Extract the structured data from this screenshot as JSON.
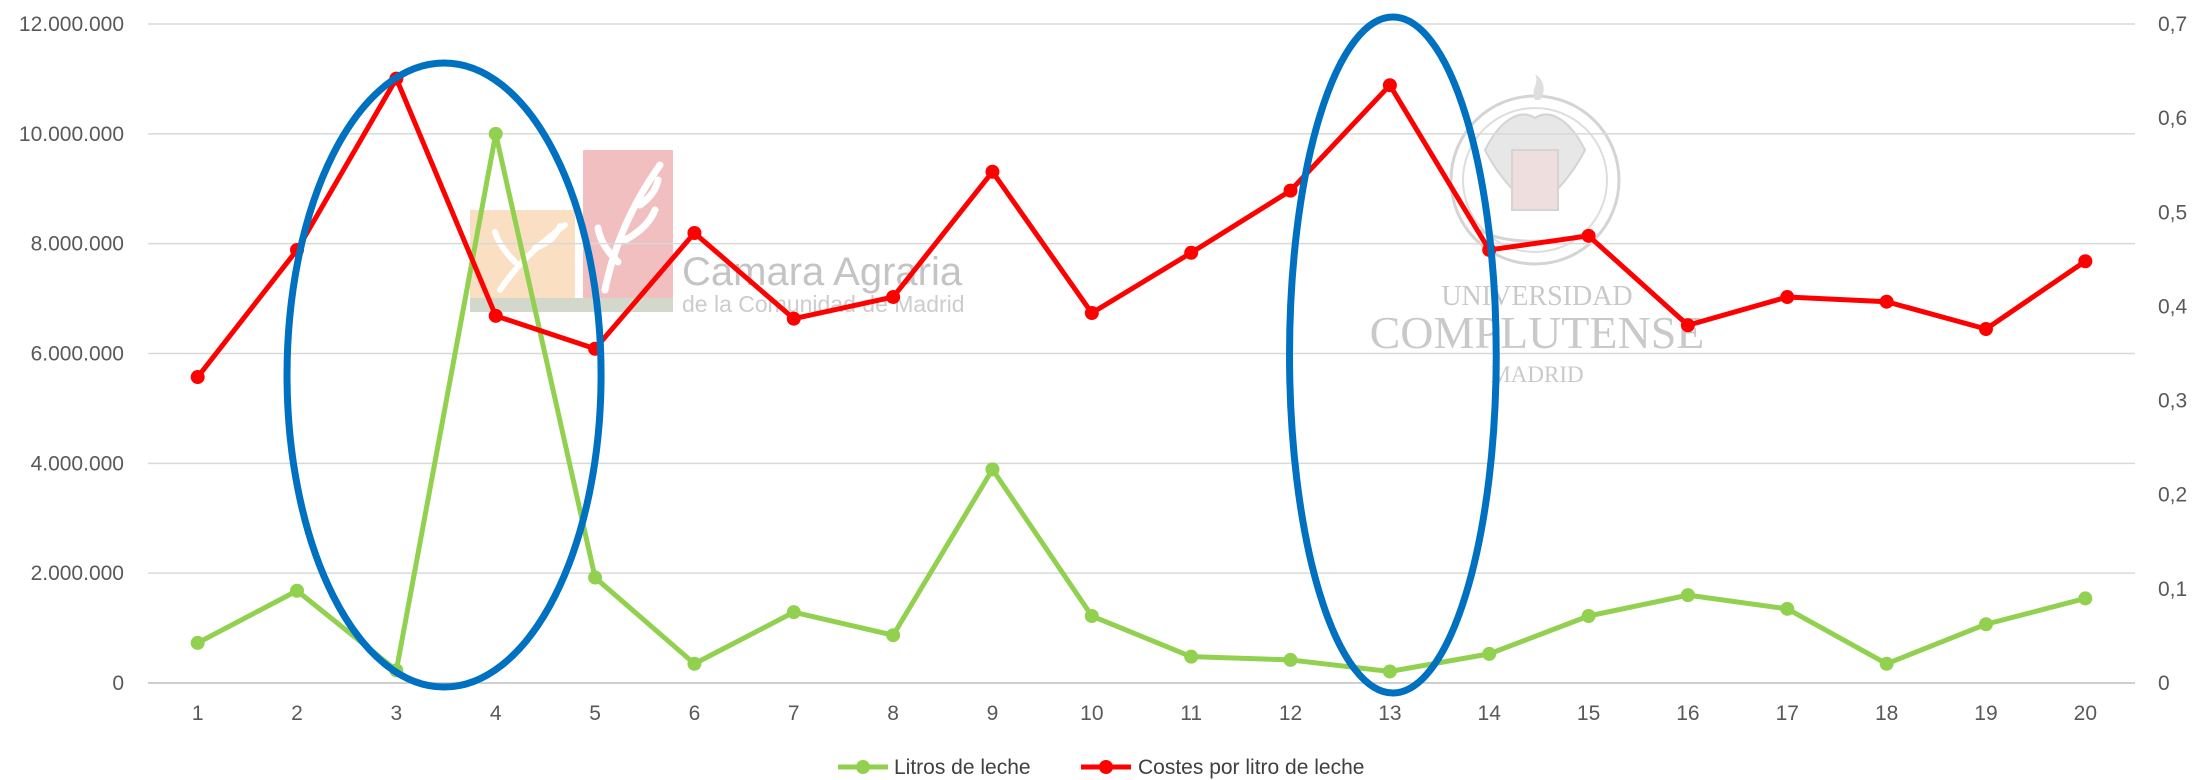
{
  "chart_data": {
    "type": "line",
    "title": "",
    "xlabel": "",
    "ylabel": "",
    "categories": [
      "1",
      "2",
      "3",
      "4",
      "5",
      "6",
      "7",
      "8",
      "9",
      "10",
      "11",
      "12",
      "13",
      "14",
      "15",
      "16",
      "17",
      "18",
      "19",
      "20"
    ],
    "left_axis": {
      "ylim": [
        0,
        12000000
      ],
      "ticks": [
        0,
        2000000,
        4000000,
        6000000,
        8000000,
        10000000,
        12000000
      ],
      "tick_labels": [
        "0",
        "2.000.000",
        "4.000.000",
        "6.000.000",
        "8.000.000",
        "10.000.000",
        "12.000.000"
      ]
    },
    "right_axis": {
      "ylim": [
        0,
        0.7
      ],
      "ticks": [
        0,
        0.1,
        0.2,
        0.3,
        0.4,
        0.5,
        0.6,
        0.7
      ],
      "tick_labels": [
        "0",
        "0,1",
        "0,2",
        "0,3",
        "0,4",
        "0,5",
        "0,6",
        "0,7"
      ]
    },
    "series": [
      {
        "name": "Litros de leche",
        "axis": "left",
        "color": "#92d050",
        "values": [
          730000,
          1680000,
          230000,
          10000000,
          1920000,
          350000,
          1290000,
          870000,
          3890000,
          1220000,
          480000,
          420000,
          210000,
          530000,
          1220000,
          1600000,
          1350000,
          350000,
          1070000,
          1540000
        ]
      },
      {
        "name": "Costes por litro de leche",
        "axis": "right",
        "color": "#ff0000",
        "values": [
          0.325,
          0.46,
          0.642,
          0.39,
          0.355,
          0.478,
          0.387,
          0.41,
          0.543,
          0.393,
          0.457,
          0.523,
          0.635,
          0.46,
          0.475,
          0.38,
          0.41,
          0.405,
          0.376,
          0.448
        ]
      }
    ],
    "grid": true,
    "legend_position": "bottom",
    "annotations": [
      {
        "type": "ellipse",
        "color": "#0070c0",
        "around_categories": [
          "2",
          "3",
          "4",
          "5"
        ]
      },
      {
        "type": "ellipse",
        "color": "#0070c0",
        "around_categories": [
          "12",
          "13",
          "14"
        ]
      }
    ]
  },
  "watermarks": {
    "camara_line1": "Camara Agraria",
    "camara_line2": "de la Comunidad de Madrid",
    "ucm_line1": "UNIVERSIDAD",
    "ucm_line2": "COMPLUTENSE",
    "ucm_line3": "MADRID"
  }
}
